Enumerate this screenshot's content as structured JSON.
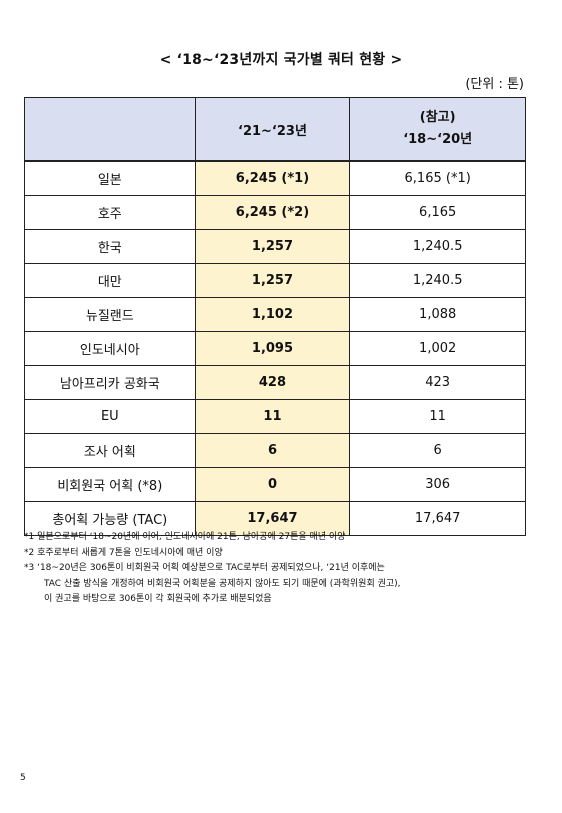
{
  "title": "< ‘18~‘23년까지 국가별 쿼터 현황 >",
  "unit": "(단위 : 톤)",
  "table": {
    "headers": {
      "col1": "",
      "col2": "‘21~‘23년",
      "col3_line1": "(참고)",
      "col3_line2": "‘18~‘20년"
    },
    "rows": [
      {
        "country": "일본",
        "y2123": "6,245 (*1)",
        "y1820": "6,165 (*1)"
      },
      {
        "country": "호주",
        "y2123": "6,245 (*2)",
        "y1820": "6,165"
      },
      {
        "country": "한국",
        "y2123": "1,257",
        "y1820": "1,240.5"
      },
      {
        "country": "대만",
        "y2123": "1,257",
        "y1820": "1,240.5"
      },
      {
        "country": "뉴질랜드",
        "y2123": "1,102",
        "y1820": "1,088"
      },
      {
        "country": "인도네시아",
        "y2123": "1,095",
        "y1820": "1,002"
      },
      {
        "country": "남아프리카 공화국",
        "y2123": "428",
        "y1820": "423"
      },
      {
        "country": "EU",
        "y2123": "11",
        "y1820": "11"
      },
      {
        "country": "조사 어획",
        "y2123": "6",
        "y1820": "6"
      },
      {
        "country": "비회원국 어획 (*8)",
        "y2123": "0",
        "y1820": "306"
      },
      {
        "country": "총어획 가능량 (TAC)",
        "y2123": "17,647",
        "y1820": "17,647"
      }
    ]
  },
  "notes": [
    "*1 일본으로부터 ‘18~20년에 이어, 인도네시아에 21톤, 남아공에 27톤을 매년 이양",
    "*2 호주로부터 새롭게 7톤을 인도네시아에 매년 이양",
    "*3 ‘18~20년은 306톤이 비회원국 어획 예상분으로 TAC로부터 공제되었으나, ‘21년 이후에는",
    "TAC 산출 방식을 개정하여 비회원국 어획분을 공제하지 않아도 되기 때문에 (과학위원회 권고),",
    "이 권고를 바탕으로 306톤이 각 회원국에 추가로 배분되었음"
  ],
  "page_number": "5",
  "colors": {
    "header_bg": "#d9dff1",
    "highlight_col_bg": "#fdf3cf"
  }
}
